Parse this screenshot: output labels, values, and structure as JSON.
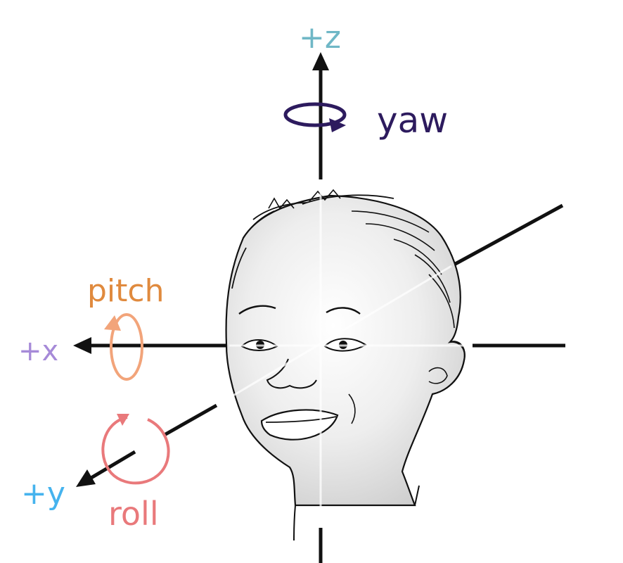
{
  "labels": {
    "z": "+z",
    "yaw": "yaw",
    "pitch": "pitch",
    "x": "+x",
    "y": "+y",
    "roll": "roll"
  },
  "colors": {
    "z": "#6fb7c6",
    "yaw": "#2d1b5e",
    "pitch": "#e08a3e",
    "pitch_arrow": "#f2a47a",
    "x": "#a68ad8",
    "y": "#45b3ee",
    "roll": "#e9797b",
    "axis": "#111111",
    "face_line": "#111111",
    "face_shade": "#d8d8d8"
  },
  "icons": [
    "yaw-rotation-icon",
    "pitch-rotation-icon",
    "roll-rotation-icon",
    "face-illustration"
  ]
}
